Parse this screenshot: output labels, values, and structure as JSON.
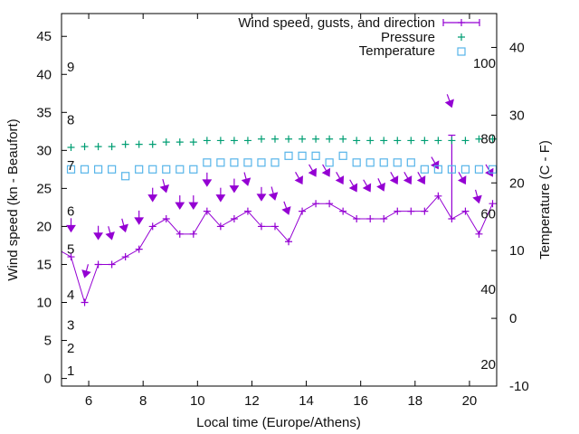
{
  "chart_data": {
    "type": "line",
    "xlabel": "Local time (Europe/Athens)",
    "ylabel": "Wind speed (kn - Beaufort)",
    "y2label": "Temperature (C - F)",
    "xlim": [
      5,
      21
    ],
    "ylim": [
      -1,
      48
    ],
    "y2lim": [
      -10,
      45
    ],
    "xticks": [
      6,
      8,
      10,
      12,
      14,
      16,
      18,
      20
    ],
    "yticks": [
      0,
      5,
      10,
      15,
      20,
      25,
      30,
      35,
      40,
      45
    ],
    "y2ticks": [
      -10,
      0,
      10,
      20,
      30,
      40
    ],
    "beaufort_labels": [
      {
        "label": "1",
        "kn": 1
      },
      {
        "label": "2",
        "kn": 4
      },
      {
        "label": "3",
        "kn": 7
      },
      {
        "label": "4",
        "kn": 11
      },
      {
        "label": "5",
        "kn": 17
      },
      {
        "label": "6",
        "kn": 22
      },
      {
        "label": "7",
        "kn": 28
      },
      {
        "label": "8",
        "kn": 34
      },
      {
        "label": "9",
        "kn": 41
      }
    ],
    "fahrenheit_labels": [
      {
        "label": "20",
        "f": 20
      },
      {
        "label": "40",
        "f": 40
      },
      {
        "label": "60",
        "f": 60
      },
      {
        "label": "80",
        "f": 80
      },
      {
        "label": "100",
        "f": 100
      }
    ],
    "legend": {
      "placement": "top-right",
      "entries": [
        "Wind speed, gusts, and direction",
        "Pressure",
        "Temperature"
      ]
    },
    "colors": {
      "wind": "#9400d3",
      "pressure": "#009e73",
      "temperature": "#56b4e9"
    },
    "x": [
      5.35,
      5.85,
      6.35,
      6.85,
      7.35,
      7.85,
      8.35,
      8.85,
      9.35,
      9.85,
      10.35,
      10.85,
      11.35,
      11.85,
      12.35,
      12.85,
      13.35,
      13.85,
      14.35,
      14.85,
      15.35,
      15.85,
      16.35,
      16.85,
      17.35,
      17.85,
      18.35,
      18.85,
      19.35,
      19.85,
      20.35,
      20.85
    ],
    "series": [
      {
        "name": "Wind speed, gusts, and direction",
        "axis": "y",
        "lead_in": {
          "x": 4.85,
          "y": 17
        },
        "values": [
          16,
          10,
          15,
          15,
          16,
          17,
          20,
          21,
          19,
          19,
          22,
          20,
          21,
          22,
          20,
          20,
          18,
          22,
          23,
          23,
          22,
          21,
          21,
          21,
          22,
          22,
          22,
          24,
          21,
          22,
          19,
          23
        ],
        "gusts": [
          null,
          null,
          null,
          null,
          null,
          null,
          null,
          null,
          null,
          null,
          null,
          null,
          null,
          null,
          null,
          null,
          null,
          null,
          null,
          null,
          null,
          null,
          null,
          null,
          null,
          null,
          null,
          null,
          32,
          null,
          null,
          null
        ],
        "direction_arrow_level": [
          19.3,
          13.3,
          18.3,
          18.3,
          19.3,
          20.3,
          23.3,
          24.5,
          22.3,
          22.3,
          25.3,
          23.3,
          24.5,
          25.4,
          23.4,
          23.5,
          21.6,
          25.6,
          26.6,
          26.6,
          25.6,
          24.6,
          24.6,
          24.7,
          25.6,
          25.6,
          25.6,
          27.6,
          35.7,
          25.6,
          23.1,
          26.6
        ],
        "direction_from_deg": [
          0,
          15,
          0,
          345,
          345,
          0,
          0,
          345,
          0,
          0,
          0,
          0,
          0,
          345,
          0,
          345,
          340,
          330,
          330,
          330,
          330,
          330,
          330,
          335,
          330,
          330,
          330,
          330,
          340,
          330,
          345,
          330
        ]
      },
      {
        "name": "Pressure",
        "axis": "y",
        "values": [
          30.4,
          30.5,
          30.5,
          30.5,
          30.8,
          30.8,
          30.8,
          31.1,
          31.1,
          31.1,
          31.3,
          31.3,
          31.3,
          31.3,
          31.5,
          31.5,
          31.5,
          31.5,
          31.5,
          31.5,
          31.5,
          31.3,
          31.3,
          31.3,
          31.3,
          31.3,
          31.3,
          31.3,
          31.3,
          31.3,
          31.5,
          31.5
        ]
      },
      {
        "name": "Temperature",
        "axis": "y2",
        "values": [
          22,
          22,
          22,
          22,
          21,
          22,
          22,
          22,
          22,
          22,
          23,
          23,
          23,
          23,
          23,
          23,
          24,
          24,
          24,
          23,
          24,
          23,
          23,
          23,
          23,
          23,
          22,
          22,
          22,
          22,
          22,
          22
        ]
      }
    ]
  }
}
